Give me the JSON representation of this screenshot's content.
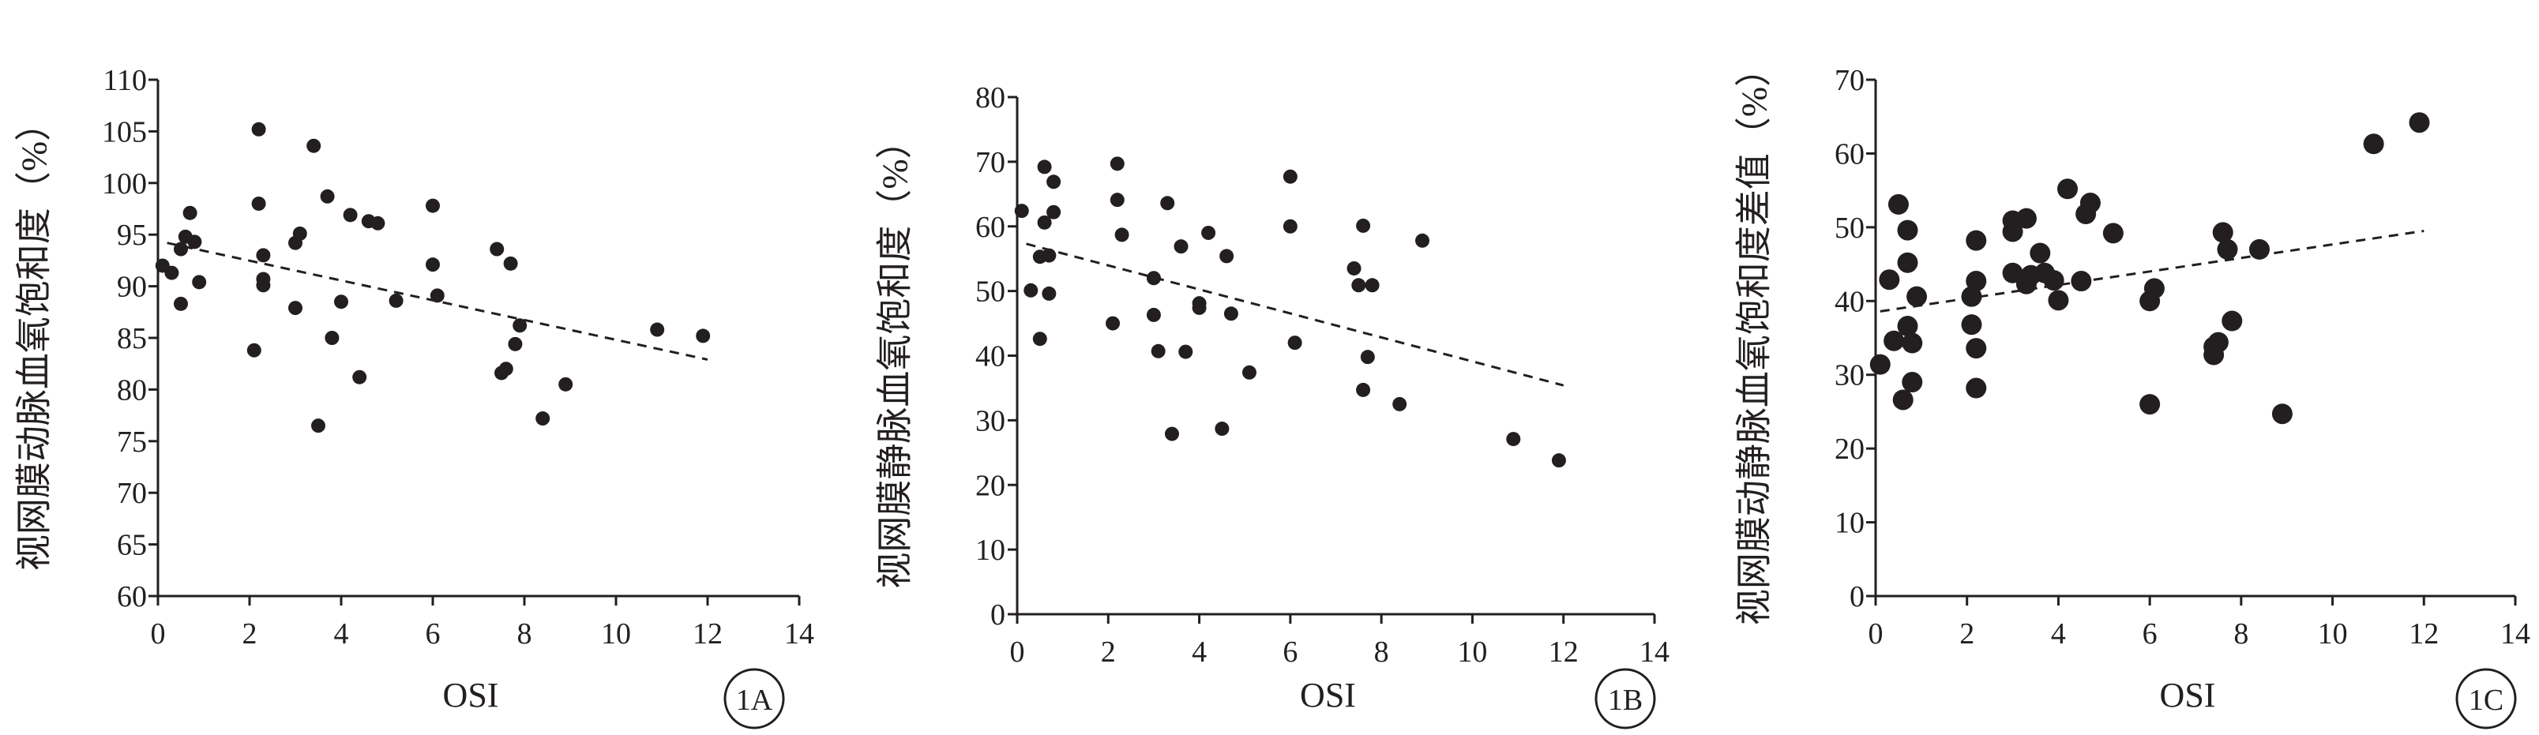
{
  "chart_data": [
    {
      "type": "scatter",
      "panel_label": "1A",
      "xlabel": "OSI",
      "ylabel": "视网膜动脉血氧饱和度（%）",
      "xlim": [
        0,
        14
      ],
      "ylim": [
        60,
        110
      ],
      "x_ticks": [
        "0",
        "2",
        "4",
        "6",
        "8",
        "10",
        "12",
        "14"
      ],
      "y_ticks": [
        "60",
        "65",
        "70",
        "75",
        "80",
        "85",
        "90",
        "95",
        "100",
        "105",
        "110"
      ],
      "grid": false,
      "trendline": {
        "style": "dashed",
        "x": [
          0.2,
          12
        ],
        "y": [
          94.2,
          82.9
        ]
      },
      "points": {
        "x": [
          0.1,
          0.3,
          0.5,
          0.5,
          0.6,
          0.7,
          0.8,
          0.9,
          2.1,
          2.2,
          2.2,
          2.3,
          2.3,
          2.3,
          3.0,
          3.0,
          3.1,
          3.4,
          3.5,
          3.7,
          3.8,
          4.0,
          4.2,
          4.4,
          4.6,
          4.8,
          5.2,
          6.0,
          6.0,
          6.1,
          7.4,
          7.5,
          7.6,
          7.7,
          7.8,
          7.9,
          8.4,
          8.9,
          10.9,
          11.9
        ],
        "y": [
          92.0,
          91.3,
          88.3,
          93.6,
          94.8,
          97.1,
          94.3,
          90.4,
          83.8,
          105.2,
          98.0,
          93.0,
          90.7,
          90.1,
          87.9,
          94.2,
          95.1,
          103.6,
          76.5,
          98.7,
          85.0,
          88.5,
          96.9,
          81.2,
          96.3,
          96.1,
          88.6,
          97.8,
          92.1,
          89.1,
          93.6,
          81.6,
          82.0,
          92.2,
          84.4,
          86.2,
          77.2,
          80.5,
          85.8,
          85.2
        ]
      }
    },
    {
      "type": "scatter",
      "panel_label": "1B",
      "xlabel": "OSI",
      "ylabel": "视网膜静脉血氧饱和度（%）",
      "xlim": [
        0,
        14
      ],
      "ylim": [
        0,
        80
      ],
      "x_ticks": [
        "0",
        "2",
        "4",
        "6",
        "8",
        "10",
        "12",
        "14"
      ],
      "y_ticks": [
        "0",
        "10",
        "20",
        "30",
        "40",
        "50",
        "60",
        "70",
        "80"
      ],
      "grid": false,
      "trendline": {
        "style": "dashed",
        "x": [
          0.2,
          12
        ],
        "y": [
          57.3,
          35.4
        ]
      },
      "points": {
        "x": [
          0.1,
          0.3,
          0.5,
          0.5,
          0.6,
          0.6,
          0.7,
          0.7,
          0.8,
          0.8,
          2.1,
          2.2,
          2.2,
          2.3,
          3.0,
          3.0,
          3.1,
          3.3,
          3.4,
          3.6,
          3.7,
          4.0,
          4.0,
          4.2,
          4.5,
          4.6,
          4.7,
          5.1,
          6.0,
          6.0,
          6.1,
          7.4,
          7.5,
          7.6,
          7.6,
          7.7,
          7.8,
          8.4,
          8.9,
          10.9,
          11.9
        ],
        "y": [
          62.4,
          50.1,
          42.6,
          55.3,
          69.2,
          60.6,
          49.6,
          55.5,
          62.2,
          66.9,
          45.0,
          69.7,
          64.1,
          58.7,
          52.0,
          46.3,
          40.7,
          63.6,
          27.9,
          56.9,
          40.6,
          47.4,
          48.1,
          59.0,
          28.7,
          55.4,
          46.5,
          37.4,
          67.7,
          60.0,
          42.0,
          53.5,
          50.9,
          60.1,
          34.7,
          39.8,
          50.9,
          32.5,
          57.8,
          27.1,
          23.8
        ]
      }
    },
    {
      "type": "scatter",
      "panel_label": "1C",
      "xlabel": "OSI",
      "ylabel": "视网膜动静脉血氧饱和度差值（%）",
      "xlim": [
        0,
        14
      ],
      "ylim": [
        0,
        70
      ],
      "x_ticks": [
        "0",
        "2",
        "4",
        "6",
        "8",
        "10",
        "12",
        "14"
      ],
      "y_ticks": [
        "0",
        "10",
        "20",
        "30",
        "40",
        "50",
        "60",
        "70"
      ],
      "grid": false,
      "trendline": {
        "style": "dashed",
        "x": [
          0.1,
          12
        ],
        "y": [
          38.6,
          49.5
        ]
      },
      "points": {
        "x": [
          0.1,
          0.3,
          0.4,
          0.5,
          0.6,
          0.7,
          0.7,
          0.8,
          0.8,
          0.9,
          0.7,
          2.1,
          2.1,
          2.2,
          2.2,
          2.2,
          2.2,
          3.0,
          3.0,
          3.0,
          3.3,
          3.3,
          3.4,
          3.6,
          3.7,
          3.9,
          4.0,
          4.2,
          4.5,
          4.6,
          4.7,
          5.2,
          6.0,
          6.0,
          6.1,
          7.4,
          7.4,
          7.5,
          7.6,
          7.7,
          7.8,
          8.4,
          8.9,
          10.9,
          11.9
        ],
        "y": [
          31.4,
          42.9,
          34.6,
          53.1,
          26.6,
          49.6,
          36.6,
          34.3,
          29.0,
          40.6,
          45.2,
          36.8,
          40.6,
          28.2,
          33.6,
          42.7,
          48.2,
          50.9,
          43.8,
          49.4,
          42.3,
          51.2,
          43.5,
          46.5,
          43.8,
          42.8,
          40.1,
          55.2,
          42.7,
          51.8,
          53.3,
          49.2,
          26.0,
          40.0,
          41.7,
          32.7,
          33.8,
          34.4,
          49.3,
          47.0,
          37.3,
          47.0,
          24.7,
          61.3,
          64.2
        ]
      }
    }
  ]
}
